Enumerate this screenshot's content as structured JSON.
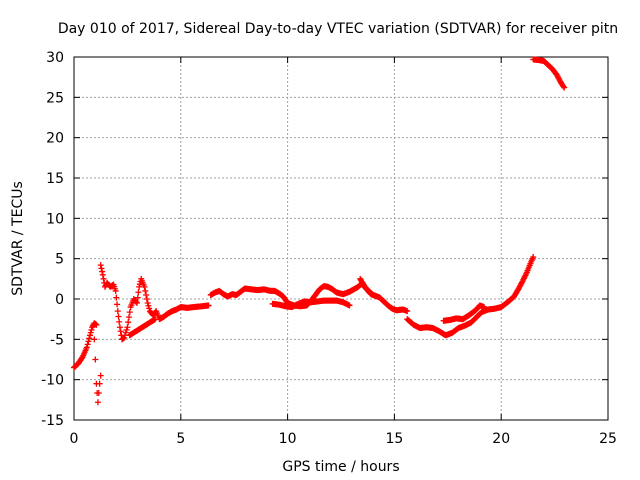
{
  "chart_data": {
    "type": "scatter",
    "title": "Day 010 of 2017, Sidereal Day-to-day VTEC variation (SDTVAR) for receiver pitn",
    "xlabel": "GPS time / hours",
    "ylabel": "SDTVAR / TECUs",
    "xlim": [
      0,
      25
    ],
    "ylim": [
      -15,
      30
    ],
    "xticks": [
      0,
      5,
      10,
      15,
      20,
      25
    ],
    "yticks": [
      -15,
      -10,
      -5,
      0,
      5,
      10,
      15,
      20,
      25,
      30
    ],
    "grid": true,
    "marker": "+",
    "series": [
      {
        "name": "SDTVAR",
        "color": "#ff0000",
        "segments": [
          [
            [
              0.0,
              -8.5
            ],
            [
              0.2,
              -8.0
            ],
            [
              0.4,
              -7.2
            ],
            [
              0.6,
              -6.0
            ],
            [
              0.75,
              -4.5
            ],
            [
              0.85,
              -3.5
            ],
            [
              0.95,
              -3.0
            ],
            [
              1.05,
              -3.2
            ]
          ],
          [
            [
              0.95,
              -5.0
            ],
            [
              1.0,
              -7.5
            ],
            [
              1.05,
              -10.5
            ],
            [
              1.12,
              -12.8
            ],
            [
              1.2,
              -10.5
            ],
            [
              1.25,
              -9.5
            ]
          ],
          [
            [
              1.25,
              4.2
            ],
            [
              1.35,
              3.0
            ],
            [
              1.45,
              1.5
            ],
            [
              1.55,
              2.0
            ],
            [
              1.7,
              1.5
            ],
            [
              1.85,
              1.8
            ],
            [
              1.95,
              1.0
            ],
            [
              2.05,
              -1.5
            ],
            [
              2.15,
              -3.5
            ],
            [
              2.25,
              -5.0
            ],
            [
              2.35,
              -4.8
            ],
            [
              2.5,
              -3.5
            ],
            [
              2.65,
              -1.0
            ],
            [
              2.8,
              0.0
            ],
            [
              2.95,
              -0.5
            ],
            [
              3.05,
              1.5
            ],
            [
              3.15,
              2.5
            ],
            [
              3.3,
              1.5
            ],
            [
              3.45,
              -0.5
            ],
            [
              3.55,
              -1.5
            ],
            [
              3.7,
              -2.0
            ],
            [
              3.85,
              -1.5
            ],
            [
              4.0,
              -2.5
            ],
            [
              4.2,
              -2.2
            ],
            [
              4.4,
              -1.8
            ],
            [
              4.6,
              -1.5
            ],
            [
              4.8,
              -1.3
            ],
            [
              5.0,
              -1.0
            ],
            [
              5.3,
              -1.1
            ],
            [
              5.6,
              -1.0
            ],
            [
              6.0,
              -0.9
            ],
            [
              6.3,
              -0.8
            ]
          ],
          [
            [
              2.6,
              -4.5
            ],
            [
              2.9,
              -4.0
            ],
            [
              3.2,
              -3.5
            ],
            [
              3.5,
              -3.0
            ],
            [
              3.8,
              -2.5
            ]
          ],
          [
            [
              6.4,
              0.5
            ],
            [
              6.6,
              0.8
            ],
            [
              6.8,
              1.0
            ],
            [
              7.0,
              0.6
            ],
            [
              7.2,
              0.3
            ],
            [
              7.4,
              0.6
            ],
            [
              7.6,
              0.5
            ],
            [
              7.8,
              0.9
            ],
            [
              8.0,
              1.3
            ],
            [
              8.3,
              1.2
            ],
            [
              8.6,
              1.1
            ],
            [
              8.9,
              1.2
            ],
            [
              9.2,
              1.0
            ],
            [
              9.4,
              1.0
            ],
            [
              9.6,
              0.7
            ],
            [
              9.8,
              0.3
            ],
            [
              10.0,
              -0.5
            ],
            [
              10.3,
              -0.8
            ],
            [
              10.6,
              -0.9
            ],
            [
              10.9,
              -0.8
            ],
            [
              11.1,
              -0.2
            ],
            [
              11.3,
              0.5
            ],
            [
              11.5,
              1.2
            ],
            [
              11.7,
              1.6
            ],
            [
              11.9,
              1.5
            ],
            [
              12.1,
              1.2
            ],
            [
              12.3,
              0.8
            ],
            [
              12.6,
              0.6
            ],
            [
              12.9,
              0.9
            ],
            [
              13.1,
              1.2
            ],
            [
              13.3,
              1.5
            ],
            [
              13.5,
              2.0
            ],
            [
              13.7,
              1.2
            ],
            [
              13.9,
              0.6
            ],
            [
              14.1,
              0.4
            ],
            [
              14.3,
              0.2
            ],
            [
              14.5,
              -0.3
            ],
            [
              14.7,
              -0.8
            ],
            [
              14.9,
              -1.2
            ],
            [
              15.1,
              -1.4
            ],
            [
              15.4,
              -1.3
            ],
            [
              15.6,
              -1.5
            ]
          ],
          [
            [
              9.3,
              -0.6
            ],
            [
              9.6,
              -0.7
            ],
            [
              9.9,
              -0.9
            ],
            [
              10.2,
              -1.0
            ],
            [
              10.5,
              -0.6
            ],
            [
              10.8,
              -0.3
            ],
            [
              11.1,
              -0.4
            ],
            [
              11.4,
              -0.3
            ],
            [
              11.7,
              -0.2
            ],
            [
              12.0,
              -0.2
            ],
            [
              12.3,
              -0.2
            ],
            [
              12.6,
              -0.4
            ],
            [
              12.9,
              -0.8
            ]
          ],
          [
            [
              13.4,
              2.5
            ],
            [
              13.6,
              1.5
            ],
            [
              13.8,
              1.0
            ],
            [
              14.0,
              0.5
            ]
          ],
          [
            [
              15.6,
              -2.5
            ],
            [
              15.9,
              -3.2
            ],
            [
              16.2,
              -3.6
            ],
            [
              16.5,
              -3.5
            ],
            [
              16.8,
              -3.6
            ],
            [
              17.1,
              -4.0
            ],
            [
              17.4,
              -4.5
            ],
            [
              17.7,
              -4.2
            ],
            [
              18.0,
              -3.6
            ],
            [
              18.3,
              -3.3
            ],
            [
              18.6,
              -2.9
            ],
            [
              18.9,
              -2.1
            ],
            [
              19.1,
              -1.6
            ],
            [
              19.4,
              -1.3
            ],
            [
              19.7,
              -1.2
            ],
            [
              20.0,
              -1.0
            ],
            [
              20.3,
              -0.4
            ],
            [
              20.6,
              0.3
            ],
            [
              20.8,
              1.2
            ],
            [
              21.0,
              2.2
            ],
            [
              21.2,
              3.3
            ],
            [
              21.4,
              4.6
            ],
            [
              21.5,
              5.2
            ]
          ],
          [
            [
              17.3,
              -2.7
            ],
            [
              17.6,
              -2.6
            ],
            [
              17.9,
              -2.4
            ],
            [
              18.2,
              -2.5
            ],
            [
              18.5,
              -2.0
            ],
            [
              18.8,
              -1.4
            ],
            [
              19.0,
              -0.8
            ],
            [
              19.2,
              -1.0
            ]
          ],
          [
            [
              21.5,
              29.7
            ],
            [
              21.8,
              29.6
            ],
            [
              22.0,
              29.5
            ],
            [
              22.2,
              29.0
            ],
            [
              22.4,
              28.5
            ],
            [
              22.6,
              27.8
            ],
            [
              22.8,
              26.8
            ],
            [
              22.95,
              26.2
            ]
          ]
        ]
      }
    ]
  }
}
